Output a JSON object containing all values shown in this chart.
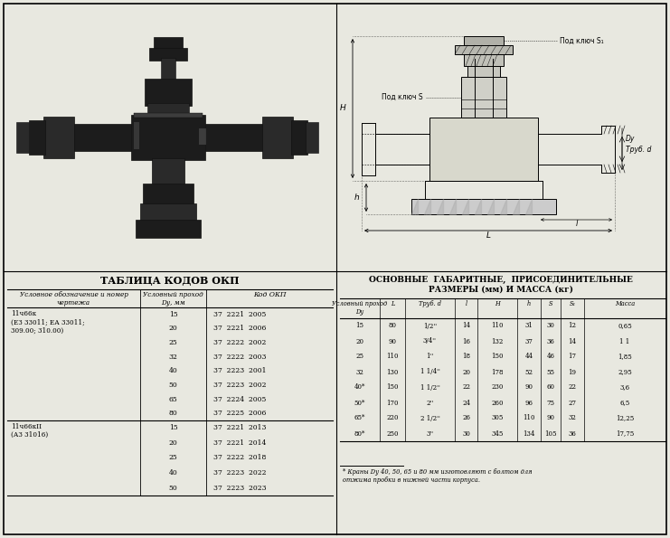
{
  "bg_color": "#e8e8e0",
  "title_okp": "ТАБЛИЦА КОДОВ ОКП",
  "okp_group1_name": "11ч66к\n(ЕЗ 33011; ЕА 33011;\n309.00; 310.00)",
  "okp_group1_dy": [
    "15",
    "20",
    "25",
    "32",
    "40",
    "50",
    "65",
    "80"
  ],
  "okp_group1_codes": [
    "37  2221  2005",
    "37  2221  2006",
    "37  2222  2002",
    "37  2222  2003",
    "37  2223  2001",
    "37  2223  2002",
    "37  2224  2005",
    "37  2225  2006"
  ],
  "okp_group2_name": "11ч66кII\n(АЗ 31016)",
  "okp_group2_dy": [
    "15",
    "20",
    "25",
    "40",
    "50"
  ],
  "okp_group2_codes": [
    "37  2221  2013",
    "37  2221  2014",
    "37  2222  2018",
    "37  2223  2022",
    "37  2223  2023"
  ],
  "dims_rows": [
    [
      "15",
      "80",
      "1/2''",
      "14",
      "110",
      "31",
      "30",
      "12",
      "0,65"
    ],
    [
      "20",
      "90",
      "3/4''",
      "16",
      "132",
      "37",
      "36",
      "14",
      "1 1"
    ],
    [
      "25",
      "110",
      "1''",
      "18",
      "150",
      "44",
      "46",
      "17",
      "1,85"
    ],
    [
      "32",
      "130",
      "1 1/4''",
      "20",
      "178",
      "52",
      "55",
      "19",
      "2,95"
    ],
    [
      "40*",
      "150",
      "1 1/2''",
      "22",
      "230",
      "90",
      "60",
      "22",
      "3,6"
    ],
    [
      "50*",
      "170",
      "2''",
      "24",
      "260",
      "96",
      "75",
      "27",
      "6,5"
    ],
    [
      "65*",
      "220",
      "2 1/2''",
      "26",
      "305",
      "110",
      "90",
      "32",
      "12,25"
    ],
    [
      "80*",
      "250",
      "3''",
      "30",
      "345",
      "134",
      "105",
      "36",
      "17,75"
    ]
  ],
  "footnote_star": "* Краны D",
  "footnote_main": "у 40, 50, 65 и 80 мм изготовляют с болтом для\nотжима пробки в нижней части корпуса.",
  "valve_dark": "#1c1c1c",
  "valve_mid": "#2a2a2a",
  "valve_light": "#3d3d3d"
}
